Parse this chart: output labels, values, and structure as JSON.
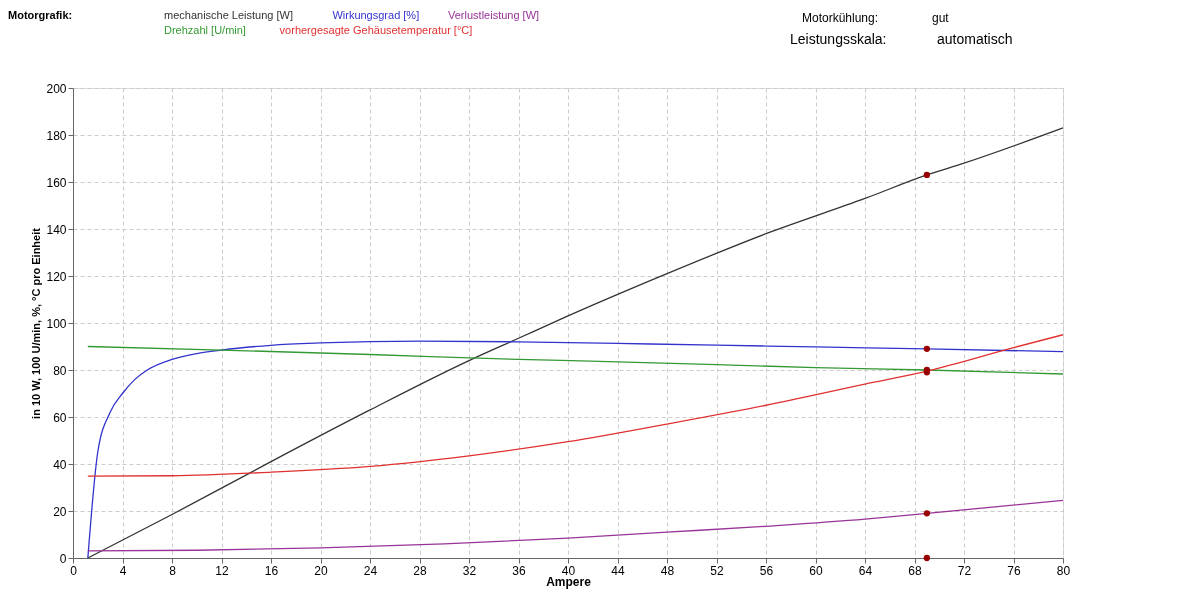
{
  "chart_data": {
    "type": "line",
    "legend_title": "Motorgrafik:",
    "legend": "top",
    "xlabel": "Ampere",
    "ylabel": "in 10 W, 100 U/min, %, °C pro Einheit",
    "annotations": [
      "Motorkühlung:",
      "gut",
      "Leistungsskala:",
      "automatisch"
    ],
    "xlim": [
      0,
      80
    ],
    "xticks": [
      0,
      4,
      8,
      12,
      16,
      20,
      24,
      28,
      32,
      36,
      40,
      44,
      48,
      52,
      56,
      60,
      64,
      68,
      72,
      76,
      80
    ],
    "ylim": [
      0,
      200
    ],
    "yticks": [
      0,
      20,
      40,
      60,
      80,
      100,
      120,
      140,
      160,
      180,
      200
    ],
    "grid": true,
    "line_style": "solid",
    "marker": "none",
    "series": [
      {
        "name": "mechanische Leistung [W]",
        "color": "#333333",
        "x": [
          1.2,
          8,
          16,
          24,
          32,
          36,
          40,
          48,
          56,
          64,
          69,
          72,
          80
        ],
        "values": [
          0,
          18.5,
          41,
          63,
          84,
          93.5,
          103,
          121,
          138,
          153,
          163,
          168,
          183
        ]
      },
      {
        "name": "Wirkungsgrad [%]",
        "color": "#3333cc",
        "x": [
          1.2,
          2,
          3,
          4,
          5,
          6,
          8,
          10,
          12,
          16,
          20,
          28,
          36,
          44,
          52,
          60,
          69,
          80
        ],
        "values": [
          0,
          45,
          62,
          70,
          76,
          80,
          84.5,
          87,
          88.5,
          90.5,
          91.5,
          92.3,
          92,
          91.3,
          90.6,
          89.8,
          89,
          87.8
        ]
      },
      {
        "name": "Verlustleistung [W]",
        "color": "#993399",
        "x": [
          1.2,
          10,
          20,
          30,
          40,
          48,
          56,
          64,
          69,
          80
        ],
        "values": [
          3,
          3.3,
          4.3,
          6,
          8.5,
          11,
          13.5,
          16.5,
          19,
          24.5
        ]
      },
      {
        "name": "Drehzahl [U/min]",
        "color": "#339933",
        "x": [
          1.2,
          12,
          24,
          36,
          44,
          52,
          60,
          69,
          80
        ],
        "values": [
          90,
          88.5,
          86.6,
          84.5,
          83.5,
          82.3,
          81,
          80,
          78.3
        ]
      },
      {
        "name": "vorhergesagte Gehäusetemperatur [°C]",
        "color": "#e03030",
        "x": [
          1.2,
          8,
          16,
          24,
          32,
          40,
          48,
          56,
          64,
          69,
          76,
          80
        ],
        "values": [
          34.8,
          35,
          36.5,
          39,
          43.5,
          49.5,
          57,
          65,
          74,
          79.5,
          89.5,
          95
        ]
      },
      {
        "type": "scatter",
        "marker": "circle",
        "color": "#990000",
        "x": [
          69,
          69,
          69,
          69,
          69,
          69
        ],
        "values": [
          163,
          89,
          80,
          79,
          19,
          0
        ]
      }
    ]
  }
}
